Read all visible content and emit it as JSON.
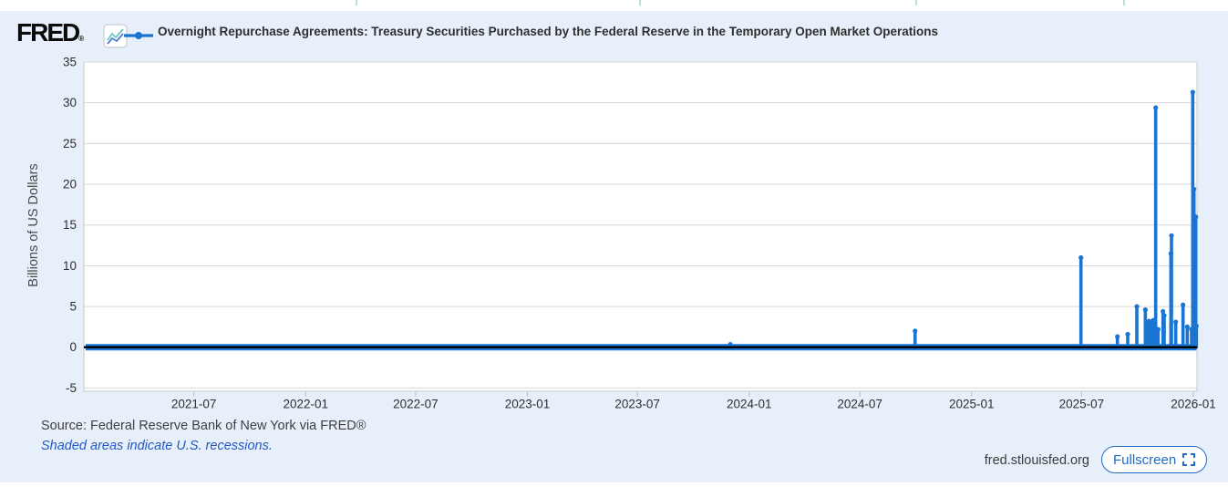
{
  "header": {
    "logo_text": "FRED",
    "registered_mark": "®",
    "legend_label": "Overnight Repurchase Agreements: Treasury Securities Purchased by the Federal Reserve in the Temporary Open Market Operations"
  },
  "footer": {
    "source_text": "Source: Federal Reserve Bank of New York via FRED®",
    "recession_note": "Shaded areas indicate U.S. recessions.",
    "site_url": "fred.stlouisfed.org",
    "fullscreen_label": "Fullscreen"
  },
  "colors": {
    "card_background": "#e7f0fa",
    "plot_background": "#ffffff",
    "series_blue": "#1a75d2",
    "zero_line": "#000000",
    "gridline": "#d7d7d7",
    "plot_border": "#c9c9c9",
    "tick_mark": "#b6bec8",
    "link_blue": "#2457c5",
    "button_blue": "#1e6cc7"
  },
  "chart_data": {
    "type": "line",
    "title": "Overnight Repurchase Agreements: Treasury Securities Purchased by the Federal Reserve in the Temporary Open Market Operations",
    "xlabel": "",
    "ylabel": "Billions of US Dollars",
    "legend_position": "top",
    "grid": "horizontal-only",
    "y_ticks": [
      -5,
      0,
      5,
      10,
      15,
      20,
      25,
      30,
      35
    ],
    "ylim": [
      -5.4,
      35
    ],
    "x_tick_labels": [
      "2021-07",
      "2022-01",
      "2022-07",
      "2023-01",
      "2023-07",
      "2024-01",
      "2024-07",
      "2025-01",
      "2025-07",
      "2026-01"
    ],
    "x_range": [
      "2021-01-01",
      "2026-01-07"
    ],
    "baseline": {
      "start": "2021-01-04",
      "end": "2026-01-06",
      "value": 0,
      "note": "daily series flat at ~0 billions except listed spikes"
    },
    "spikes": [
      {
        "date": "2023-12-01",
        "value": 0.35
      },
      {
        "date": "2024-09-30",
        "value": 2.0
      },
      {
        "date": "2025-06-30",
        "value": 11.0
      },
      {
        "date": "2025-08-29",
        "value": 1.3
      },
      {
        "date": "2025-09-15",
        "value": 1.6
      },
      {
        "date": "2025-09-30",
        "value": 5.0
      },
      {
        "date": "2025-10-14",
        "value": 4.6
      },
      {
        "date": "2025-10-16",
        "value": 2.8
      },
      {
        "date": "2025-10-17",
        "value": 3.0
      },
      {
        "date": "2025-10-20",
        "value": 3.2
      },
      {
        "date": "2025-10-21",
        "value": 2.9
      },
      {
        "date": "2025-10-23",
        "value": 3.1
      },
      {
        "date": "2025-10-27",
        "value": 3.3
      },
      {
        "date": "2025-10-29",
        "value": 2.5
      },
      {
        "date": "2025-10-31",
        "value": 29.4
      },
      {
        "date": "2025-11-04",
        "value": 2.2
      },
      {
        "date": "2025-11-12",
        "value": 4.4
      },
      {
        "date": "2025-11-14",
        "value": 3.9
      },
      {
        "date": "2025-11-25",
        "value": 11.5
      },
      {
        "date": "2025-11-26",
        "value": 13.7
      },
      {
        "date": "2025-12-03",
        "value": 3.1
      },
      {
        "date": "2025-12-15",
        "value": 5.2
      },
      {
        "date": "2025-12-22",
        "value": 2.5
      },
      {
        "date": "2025-12-29",
        "value": 2.2
      },
      {
        "date": "2025-12-31",
        "value": 31.3
      },
      {
        "date": "2026-01-02",
        "value": 19.4
      },
      {
        "date": "2026-01-05",
        "value": 16.0
      },
      {
        "date": "2026-01-06",
        "value": 2.6
      }
    ]
  }
}
